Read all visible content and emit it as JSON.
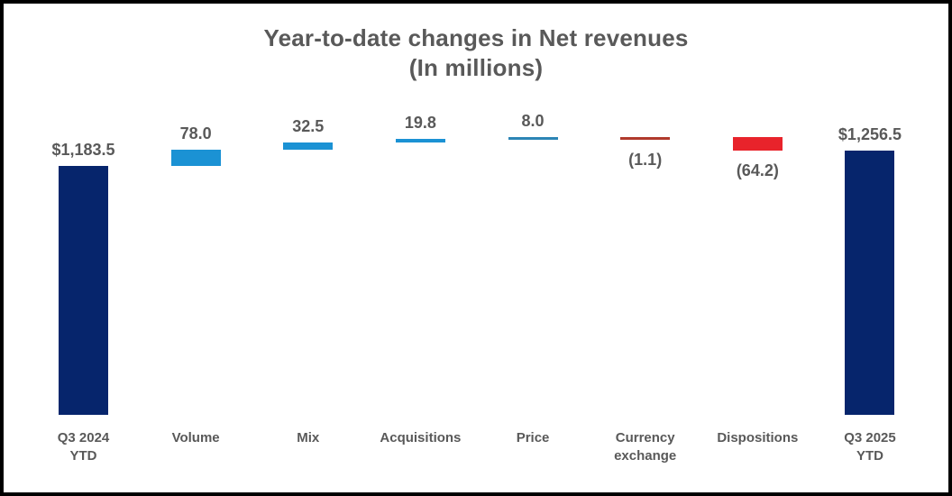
{
  "title": {
    "line1": "Year-to-date changes in Net revenues",
    "line2": "(In millions)"
  },
  "colors": {
    "navy": "#06256C",
    "blue": "#1B92D4",
    "blue_thin": "#2C85B5",
    "red": "#E8232B",
    "red_thin": "#B03A2C",
    "label_text": "#595959",
    "border": "#000000",
    "background": "#FFFFFF"
  },
  "chart_data": {
    "type": "bar",
    "variant": "waterfall",
    "title": "Year-to-date changes in Net revenues",
    "subtitle": "(In millions)",
    "grid": false,
    "legend": null,
    "ylim": [
      0,
      1350
    ],
    "categories": [
      "Q3 2024 YTD",
      "Volume",
      "Mix",
      "Acquisitions",
      "Price",
      "Currency exchange",
      "Dispositions",
      "Q3 2025 YTD"
    ],
    "columns": [
      {
        "category_lines": [
          "Q3 2024",
          "YTD"
        ],
        "label": "$1,183.5",
        "value": 1183.5,
        "kind": "total"
      },
      {
        "category_lines": [
          "Volume"
        ],
        "label": "78.0",
        "value": 78.0,
        "kind": "increase"
      },
      {
        "category_lines": [
          "Mix"
        ],
        "label": "32.5",
        "value": 32.5,
        "kind": "increase"
      },
      {
        "category_lines": [
          "Acquisitions"
        ],
        "label": "19.8",
        "value": 19.8,
        "kind": "increase"
      },
      {
        "category_lines": [
          "Price"
        ],
        "label": "8.0",
        "value": 8.0,
        "kind": "increase"
      },
      {
        "category_lines": [
          "Currency",
          "exchange"
        ],
        "label": "(1.1)",
        "value": -1.1,
        "kind": "decrease"
      },
      {
        "category_lines": [
          "Dispositions"
        ],
        "label": "(64.2)",
        "value": -64.2,
        "kind": "decrease"
      },
      {
        "category_lines": [
          "Q3 2025",
          "YTD"
        ],
        "label": "$1,256.5",
        "value": 1256.5,
        "kind": "total"
      }
    ]
  }
}
